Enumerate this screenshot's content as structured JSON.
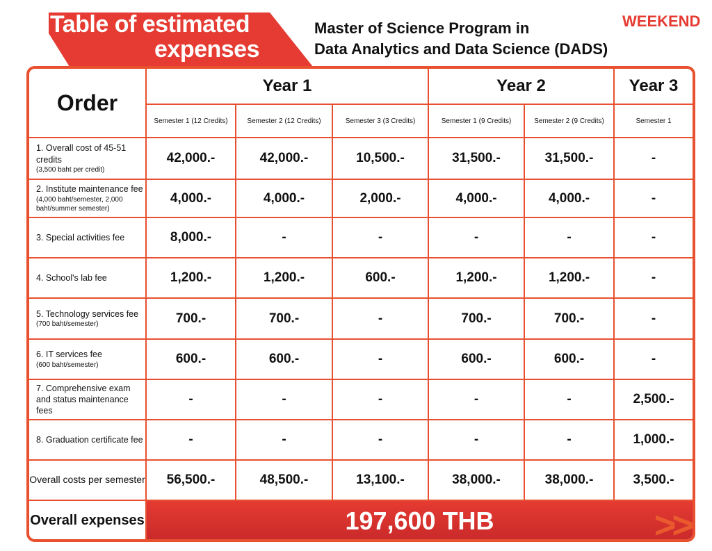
{
  "header": {
    "title_line1": "Table of estimated",
    "title_line2": "expenses",
    "program_line1": "Master of Science Program in",
    "program_line2": "Data Analytics and Data Science (DADS)",
    "badge": "WEEKEND"
  },
  "table": {
    "order_label": "Order",
    "years": [
      "Year 1",
      "Year 2",
      "Year 3"
    ],
    "semesters": [
      "Semester 1 (12 Credits)",
      "Semester 2 (12 Credits)",
      "Semester 3 (3 Credits)",
      "Semester 1 (9 Credits)",
      "Semester 2 (9 Credits)",
      "Semester 1"
    ],
    "rows": [
      {
        "label": "1. Overall cost of 45-51 credits",
        "note": "(3,500 baht per credit)",
        "values": [
          "42,000.-",
          "42,000.-",
          "10,500.-",
          "31,500.-",
          "31,500.-",
          "-"
        ]
      },
      {
        "label": "2. Institute maintenance fee",
        "note": "(4,000 baht/semester, 2,000 baht/summer semester)",
        "values": [
          "4,000.-",
          "4,000.-",
          "2,000.-",
          "4,000.-",
          "4,000.-",
          "-"
        ]
      },
      {
        "label": "3. Special activities fee",
        "note": "",
        "values": [
          "8,000.-",
          "-",
          "-",
          "-",
          "-",
          "-"
        ]
      },
      {
        "label": "4. School's lab fee",
        "note": "",
        "values": [
          "1,200.-",
          "1,200.-",
          "600.-",
          "1,200.-",
          "1,200.-",
          "-"
        ]
      },
      {
        "label": "5. Technology services fee",
        "note": "(700 baht/semester)",
        "values": [
          "700.-",
          "700.-",
          "-",
          "700.-",
          "700.-",
          "-"
        ]
      },
      {
        "label": "6. IT services fee",
        "note": "(600 baht/semester)",
        "values": [
          "600.-",
          "600.-",
          "-",
          "600.-",
          "600.-",
          "-"
        ]
      },
      {
        "label": "7. Comprehensive exam and status maintenance fees",
        "note": "",
        "values": [
          "-",
          "-",
          "-",
          "-",
          "-",
          "2,500.-"
        ]
      },
      {
        "label": "8. Graduation certificate fee",
        "note": "",
        "values": [
          "-",
          "-",
          "-",
          "-",
          "-",
          "1,000.-"
        ]
      }
    ],
    "totals": {
      "label": "Overall costs per semester",
      "values": [
        "56,500.-",
        "48,500.-",
        "13,100.-",
        "38,000.-",
        "38,000.-",
        "3,500.-"
      ]
    },
    "grand": {
      "label": "Overall expenses",
      "value": "197,600 THB"
    }
  },
  "colors": {
    "accent": "#e53b32",
    "border": "#e8502f"
  }
}
